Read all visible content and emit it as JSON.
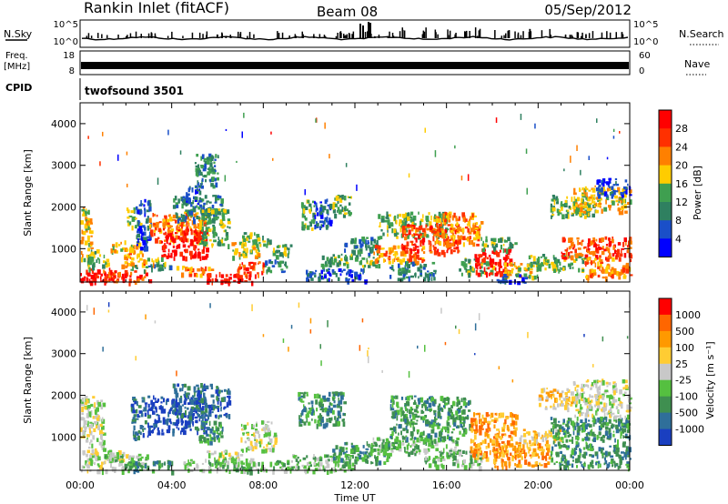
{
  "header": {
    "station": "Rankin Inlet (fitACF)",
    "beam": "Beam 08",
    "date": "05/Sep/2012"
  },
  "top_panels": {
    "nsky_label": "N.Sky",
    "nsearch_label": "N.Search",
    "nsky_ticks": [
      "10^5",
      "10^0"
    ],
    "freq_label_line1": "Freq.",
    "freq_label_line2": "[MHz]",
    "freq_ticks": [
      "18",
      "8"
    ],
    "nave_label": "Nave",
    "nave_ticks": [
      "60",
      "0"
    ],
    "cpid_label": "CPID",
    "cpid_value": "twofsound 3501"
  },
  "colors": {
    "background": "#ffffff",
    "axis": "#000000"
  },
  "chart_data": [
    {
      "type": "heatmap",
      "panel": "power",
      "ylabel": "Slant Range [km]",
      "ylim": [
        200,
        4500
      ],
      "yticks": [
        1000,
        2000,
        3000,
        4000
      ],
      "xlim": [
        0,
        24
      ],
      "colorbar": {
        "label": "Power [dB]",
        "ticks": [
          "4",
          "8",
          "12",
          "16",
          "20",
          "24",
          "28"
        ],
        "colors": [
          "#0000ff",
          "#1a4fc8",
          "#2f8060",
          "#3f9f50",
          "#ffcc00",
          "#ff8000",
          "#ff3000",
          "#ff0000"
        ]
      },
      "regions": [
        {
          "t0": 0.0,
          "t1": 1.5,
          "r0": 200,
          "r1": 550,
          "level": 7
        },
        {
          "t0": 1.0,
          "t1": 3.0,
          "r0": 200,
          "r1": 500,
          "level": 6
        },
        {
          "t0": 0.0,
          "t1": 0.5,
          "r0": 700,
          "r1": 2000,
          "level": 4
        },
        {
          "t0": 0.3,
          "t1": 1.2,
          "r0": 550,
          "r1": 1000,
          "level": 3
        },
        {
          "t0": 1.3,
          "t1": 2.6,
          "r0": 900,
          "r1": 1200,
          "level": 4
        },
        {
          "t0": 1.8,
          "t1": 2.8,
          "r0": 600,
          "r1": 900,
          "level": 5
        },
        {
          "t0": 2.2,
          "t1": 4.0,
          "r0": 500,
          "r1": 650,
          "level": 2
        },
        {
          "t0": 2.5,
          "t1": 3.7,
          "r0": 650,
          "r1": 800,
          "level": 4
        },
        {
          "t0": 2.0,
          "t1": 2.6,
          "r0": 1500,
          "r1": 2000,
          "level": 3
        },
        {
          "t0": 2.4,
          "t1": 3.1,
          "r0": 1000,
          "r1": 2200,
          "level": 1
        },
        {
          "t0": 3.0,
          "t1": 5.4,
          "r0": 1200,
          "r1": 1900,
          "level": 5
        },
        {
          "t0": 3.5,
          "t1": 5.5,
          "r0": 800,
          "r1": 1500,
          "level": 7
        },
        {
          "t0": 4.0,
          "t1": 6.2,
          "r0": 1700,
          "r1": 2300,
          "level": 2
        },
        {
          "t0": 4.6,
          "t1": 5.3,
          "r0": 2100,
          "r1": 2600,
          "level": 1
        },
        {
          "t0": 5.2,
          "t1": 6.5,
          "r0": 1100,
          "r1": 2000,
          "level": 3
        },
        {
          "t0": 5.0,
          "t1": 6.0,
          "r0": 2500,
          "r1": 3300,
          "level": 2
        },
        {
          "t0": 5.5,
          "t1": 7.5,
          "r0": 200,
          "r1": 450,
          "level": 7
        },
        {
          "t0": 4.2,
          "t1": 5.8,
          "r0": 400,
          "r1": 600,
          "level": 5
        },
        {
          "t0": 6.8,
          "t1": 8.0,
          "r0": 350,
          "r1": 700,
          "level": 6
        },
        {
          "t0": 6.5,
          "t1": 7.8,
          "r0": 800,
          "r1": 1200,
          "level": 4
        },
        {
          "t0": 7.0,
          "t1": 8.3,
          "r0": 1100,
          "r1": 1400,
          "level": 3
        },
        {
          "t0": 8.0,
          "t1": 9.0,
          "r0": 450,
          "r1": 750,
          "level": 2
        },
        {
          "t0": 8.3,
          "t1": 9.2,
          "r0": 850,
          "r1": 1150,
          "level": 3
        },
        {
          "t0": 9.6,
          "t1": 10.2,
          "r0": 1500,
          "r1": 2200,
          "level": 3
        },
        {
          "t0": 10.2,
          "t1": 11.0,
          "r0": 1500,
          "r1": 2200,
          "level": 1
        },
        {
          "t0": 11.0,
          "t1": 11.8,
          "r0": 1800,
          "r1": 2300,
          "level": 3
        },
        {
          "t0": 9.8,
          "t1": 12.5,
          "r0": 250,
          "r1": 550,
          "level": 1
        },
        {
          "t0": 10.5,
          "t1": 13.0,
          "r0": 600,
          "r1": 900,
          "level": 3
        },
        {
          "t0": 11.5,
          "t1": 13.0,
          "r0": 900,
          "r1": 1300,
          "level": 2
        },
        {
          "t0": 12.8,
          "t1": 15.0,
          "r0": 700,
          "r1": 1100,
          "level": 5
        },
        {
          "t0": 13.0,
          "t1": 16.0,
          "r0": 1300,
          "r1": 1900,
          "level": 3
        },
        {
          "t0": 14.0,
          "t1": 16.5,
          "r0": 900,
          "r1": 1600,
          "level": 6
        },
        {
          "t0": 15.5,
          "t1": 17.5,
          "r0": 1100,
          "r1": 1900,
          "level": 5
        },
        {
          "t0": 13.5,
          "t1": 15.5,
          "r0": 300,
          "r1": 700,
          "level": 2
        },
        {
          "t0": 16.5,
          "t1": 18.0,
          "r0": 400,
          "r1": 800,
          "level": 3
        },
        {
          "t0": 17.2,
          "t1": 18.8,
          "r0": 400,
          "r1": 1000,
          "level": 7
        },
        {
          "t0": 18.5,
          "t1": 20.0,
          "r0": 300,
          "r1": 700,
          "level": 4
        },
        {
          "t0": 18.0,
          "t1": 19.5,
          "r0": 200,
          "r1": 400,
          "level": 1
        },
        {
          "t0": 17.5,
          "t1": 19.0,
          "r0": 1000,
          "r1": 1300,
          "level": 3
        },
        {
          "t0": 19.5,
          "t1": 22.0,
          "r0": 500,
          "r1": 900,
          "level": 3
        },
        {
          "t0": 21.0,
          "t1": 24.0,
          "r0": 800,
          "r1": 1300,
          "level": 6
        },
        {
          "t0": 22.0,
          "t1": 24.0,
          "r0": 300,
          "r1": 800,
          "level": 5
        },
        {
          "t0": 20.5,
          "t1": 22.5,
          "r0": 1800,
          "r1": 2300,
          "level": 3
        },
        {
          "t0": 21.5,
          "t1": 24.0,
          "r0": 1900,
          "r1": 2500,
          "level": 4
        },
        {
          "t0": 22.5,
          "t1": 24.0,
          "r0": 2300,
          "r1": 2700,
          "level": 1
        }
      ]
    },
    {
      "type": "heatmap",
      "panel": "velocity",
      "ylabel": "Slant Range [km]",
      "xlabel": "Time UT",
      "ylim": [
        200,
        4500
      ],
      "yticks": [
        1000,
        2000,
        3000,
        4000
      ],
      "xlim": [
        0,
        24
      ],
      "xticks": [
        "00:00",
        "04:00",
        "08:00",
        "12:00",
        "16:00",
        "20:00",
        "00:00"
      ],
      "colorbar": {
        "label": "Velocity [m s⁻¹]",
        "ticks": [
          "1000",
          "500",
          "100",
          "25",
          "-25",
          "-100",
          "-500",
          "-1000"
        ],
        "colors": [
          "#1a3fc0",
          "#2f6f9a",
          "#3f8f50",
          "#55c040",
          "#c8c8c8",
          "#ffcc33",
          "#ff9900",
          "#ff6600",
          "#ff0000"
        ]
      },
      "regions": [
        {
          "t0": 0.0,
          "t1": 2.0,
          "r0": 200,
          "r1": 700,
          "level": 4
        },
        {
          "t0": 0.0,
          "t1": 1.0,
          "r0": 700,
          "r1": 2000,
          "level": 4
        },
        {
          "t0": 1.0,
          "t1": 3.0,
          "r0": 300,
          "r1": 600,
          "level": 3
        },
        {
          "t0": 2.0,
          "t1": 4.0,
          "r0": 200,
          "r1": 450,
          "level": 2
        },
        {
          "t0": 2.2,
          "t1": 3.0,
          "r0": 1000,
          "r1": 2000,
          "level": 1
        },
        {
          "t0": 3.0,
          "t1": 5.5,
          "r0": 1100,
          "r1": 2000,
          "level": 0
        },
        {
          "t0": 4.0,
          "t1": 6.5,
          "r0": 1500,
          "r1": 2300,
          "level": 1
        },
        {
          "t0": 5.0,
          "t1": 6.2,
          "r0": 900,
          "r1": 1400,
          "level": 2
        },
        {
          "t0": 4.5,
          "t1": 7.5,
          "r0": 200,
          "r1": 500,
          "level": 3
        },
        {
          "t0": 5.5,
          "t1": 7.0,
          "r0": 500,
          "r1": 700,
          "level": 4
        },
        {
          "t0": 7.0,
          "t1": 8.5,
          "r0": 700,
          "r1": 1400,
          "level": 4
        },
        {
          "t0": 7.0,
          "t1": 9.0,
          "r0": 200,
          "r1": 450,
          "level": 3
        },
        {
          "t0": 9.5,
          "t1": 11.5,
          "r0": 1300,
          "r1": 2100,
          "level": 2
        },
        {
          "t0": 9.0,
          "t1": 12.0,
          "r0": 200,
          "r1": 600,
          "level": 3
        },
        {
          "t0": 11.0,
          "t1": 13.5,
          "r0": 400,
          "r1": 900,
          "level": 2
        },
        {
          "t0": 12.5,
          "t1": 16.5,
          "r0": 600,
          "r1": 1000,
          "level": 3
        },
        {
          "t0": 13.5,
          "t1": 17.0,
          "r0": 1000,
          "r1": 2000,
          "level": 2
        },
        {
          "t0": 15.0,
          "t1": 17.5,
          "r0": 300,
          "r1": 700,
          "level": 3
        },
        {
          "t0": 17.0,
          "t1": 19.0,
          "r0": 500,
          "r1": 1600,
          "level": 6
        },
        {
          "t0": 18.0,
          "t1": 20.5,
          "r0": 300,
          "r1": 900,
          "level": 6
        },
        {
          "t0": 19.0,
          "t1": 21.0,
          "r0": 900,
          "r1": 1200,
          "level": 5
        },
        {
          "t0": 20.5,
          "t1": 24.0,
          "r0": 300,
          "r1": 1500,
          "level": 2
        },
        {
          "t0": 21.5,
          "t1": 24.0,
          "r0": 1500,
          "r1": 2400,
          "level": 4
        },
        {
          "t0": 20.0,
          "t1": 21.5,
          "r0": 1700,
          "r1": 2200,
          "level": 5
        }
      ]
    }
  ]
}
